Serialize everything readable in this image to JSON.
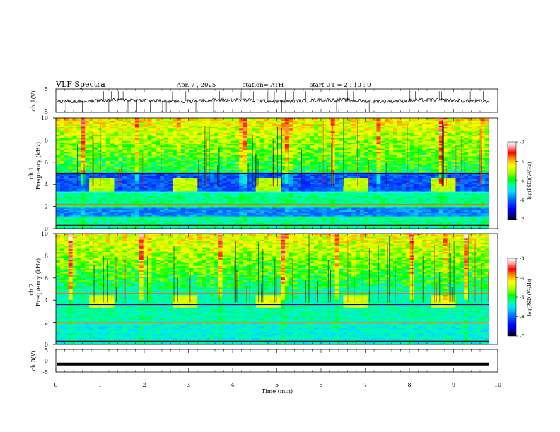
{
  "header": {
    "title": "VLF  Spectra",
    "date": "Apr. 7  , 2025",
    "station": "station= ATH",
    "start": "start  UT  =   2  : 10 : 0"
  },
  "chart_data": [
    {
      "id": "ch1-waveform",
      "type": "line",
      "ylabel": "ch.1(V)",
      "ylim": [
        -5,
        5
      ],
      "yticks": [
        "5",
        "-5"
      ],
      "xlim": [
        0,
        10
      ],
      "x_range_with_data": [
        0,
        9.8
      ],
      "baseline": 0,
      "description_values": {
        "noise_band": [
          -1.5,
          1.5
        ],
        "spike_peaks": [
          -5,
          4
        ]
      },
      "line_color": "#000000"
    },
    {
      "id": "ch1-spectrogram",
      "type": "heatmap",
      "ylabel": "ch.1\nFrequency (kHz)",
      "ylabel_line1": "ch.1",
      "ylabel_line2": "Frequency  (kHz)",
      "ylim": [
        0,
        10
      ],
      "yticks": [
        "0",
        "2",
        "4",
        "6",
        "8",
        "10"
      ],
      "xlim": [
        0,
        10
      ],
      "x_range_with_data": [
        0,
        9.8
      ],
      "colorbar": {
        "label": "log(PSD) (V²/Hz)",
        "label_text": "log(PSD)(V",
        "label_sup": "2",
        "label_tail": "/Hz)",
        "range": [
          -7,
          -3
        ],
        "ticks": [
          "-3",
          "-4",
          "-5",
          "-6",
          "-7"
        ]
      },
      "features_kHz": {
        "quiet_band": [
          3.3,
          5.0
        ],
        "low_band": [
          1.1,
          1.8
        ],
        "burst_band_center": 4.0
      },
      "burst_times_min": [
        1.0,
        2.9,
        4.8,
        6.8,
        8.8
      ]
    },
    {
      "id": "ch2-spectrogram",
      "type": "heatmap",
      "ylabel_line1": "ch.2",
      "ylabel_line2": "Frequency  (kHz)",
      "ylim": [
        0,
        10
      ],
      "yticks": [
        "0",
        "2",
        "4",
        "6",
        "8",
        "10"
      ],
      "xlim": [
        0,
        10
      ],
      "x_range_with_data": [
        0,
        9.8
      ],
      "colorbar": {
        "label_text": "log(PSD)(V",
        "label_sup": "2",
        "label_tail": "/Hz)",
        "range": [
          -7,
          -3
        ],
        "ticks": [
          "-3",
          "-4",
          "-5",
          "-6",
          "-7"
        ]
      },
      "features_kHz": {
        "band_line_1": 4.6,
        "band_line_2": 3.6,
        "band_line_3": 2.0
      },
      "burst_times_min": [
        1.0,
        2.9,
        4.8,
        6.8,
        8.8
      ]
    },
    {
      "id": "ch3-waveform",
      "type": "line",
      "ylabel": "ch.3(V)",
      "ylim": [
        -5,
        5
      ],
      "yticks": [
        "5",
        "0",
        "-5"
      ],
      "xlim": [
        0,
        10
      ],
      "x_range_with_data": [
        0,
        9.8
      ],
      "baseline": -1.5,
      "xlabel": "Time  (min)",
      "xticks": [
        "0",
        "1",
        "2",
        "3",
        "4",
        "5",
        "6",
        "7",
        "8",
        "9",
        "10"
      ]
    }
  ],
  "colors": {
    "colormap": [
      "#000000",
      "#0000a0",
      "#0000ff",
      "#0060ff",
      "#00c8ff",
      "#00ffb0",
      "#00ff00",
      "#a0ff00",
      "#ffff00",
      "#ff9900",
      "#ff0000",
      "#ffc0c0",
      "#ffffff"
    ]
  }
}
